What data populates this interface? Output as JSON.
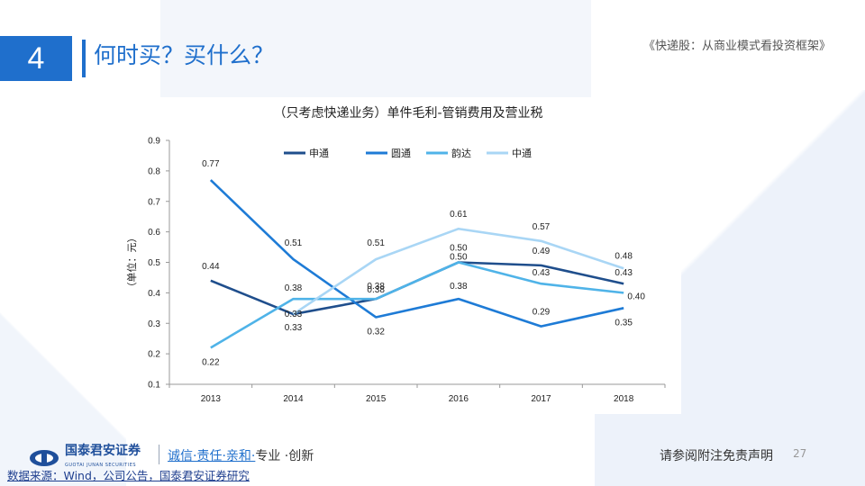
{
  "header": {
    "section_number": "4",
    "title": "何时买？买什么？",
    "doc_reference": "《快递股：从商业模式看投资框架》"
  },
  "chart_data": {
    "type": "line",
    "title": "（只考虑快递业务）单件毛利-管销费用及营业税",
    "ylabel": "（单位：元）",
    "xlabel": "",
    "categories": [
      "2013",
      "2014",
      "2015",
      "2016",
      "2017",
      "2018"
    ],
    "ylim": [
      0.1,
      0.9
    ],
    "yticks": [
      "0.1",
      "0.2",
      "0.3",
      "0.4",
      "0.5",
      "0.6",
      "0.7",
      "0.8",
      "0.9"
    ],
    "legend_position": "top",
    "grid": false,
    "series": [
      {
        "name": "申通",
        "color": "#1f4e8c",
        "values": [
          0.44,
          0.33,
          0.38,
          0.5,
          0.49,
          0.43
        ],
        "labels": [
          "0.44",
          "0.33",
          "0.38",
          "0.50",
          "0.49",
          "0.43"
        ]
      },
      {
        "name": "圆通",
        "color": "#1e7bd6",
        "values": [
          0.77,
          0.51,
          0.32,
          0.38,
          0.29,
          0.35
        ],
        "labels": [
          "0.77",
          "0.51",
          "0.32",
          "0.38",
          "0.29",
          "0.35"
        ]
      },
      {
        "name": "韵达",
        "color": "#4fb3e8",
        "values": [
          0.22,
          0.38,
          0.38,
          0.5,
          0.43,
          0.4
        ],
        "labels": [
          "0.22",
          "0.38",
          "0.38",
          "0.50",
          "0.43",
          "0.40"
        ]
      },
      {
        "name": "中通",
        "color": "#a9d6f5",
        "values": [
          null,
          0.33,
          0.51,
          0.61,
          0.57,
          0.48
        ],
        "labels": [
          "",
          "0.33",
          "0.51",
          "0.61",
          "0.57",
          "0.48"
        ]
      }
    ]
  },
  "footer": {
    "logo_name": "国泰君安证券",
    "logo_sub": "GUOTAI JUNAN SECURITIES",
    "slogan_highlight": "诚信·责任·亲和·",
    "slogan_rest": "专业 ·创新",
    "disclaimer": "请参阅附注免责声明",
    "page_number": "27",
    "source": "数据来源：Wind，公司公告，国泰君安证券研究"
  }
}
